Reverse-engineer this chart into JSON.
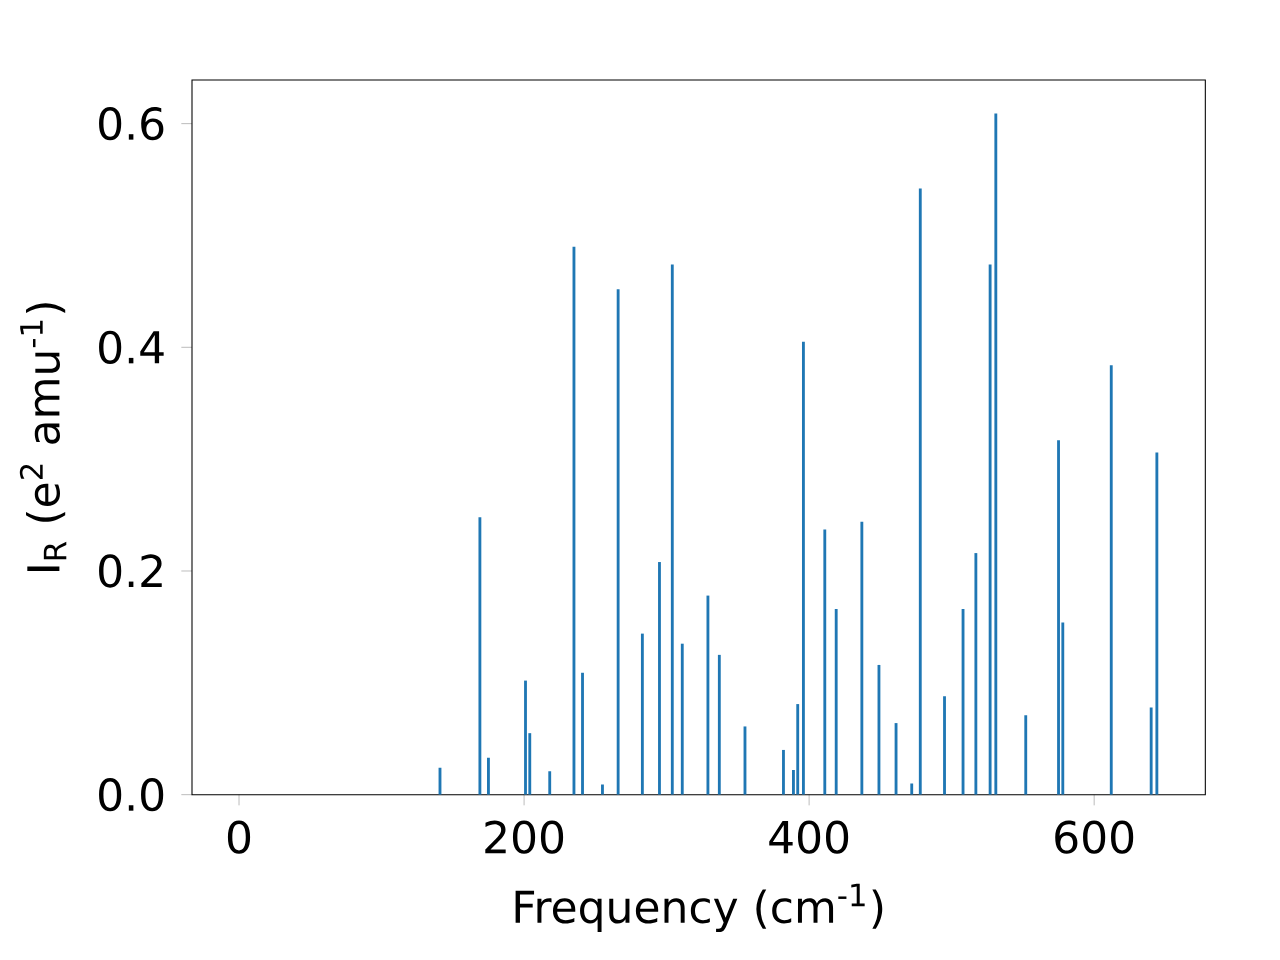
{
  "chart_data": {
    "type": "bar",
    "xlabel": "Frequency (cm$^{-1}$)",
    "ylabel": "I$_{R}$ (e$^{2}$ amu$^{-1}$)",
    "x": [
      141,
      169,
      175,
      201,
      204,
      218,
      235,
      241,
      255,
      266,
      283,
      295,
      304,
      311,
      329,
      337,
      355,
      382,
      389,
      392,
      396,
      411,
      419,
      437,
      449,
      461,
      472,
      478,
      495,
      508,
      517,
      527,
      531,
      552,
      575,
      578,
      612,
      640,
      644
    ],
    "values": [
      0.024,
      0.248,
      0.033,
      0.102,
      0.055,
      0.021,
      0.49,
      0.109,
      0.009,
      0.452,
      0.144,
      0.208,
      0.474,
      0.135,
      0.178,
      0.125,
      0.061,
      0.04,
      0.022,
      0.081,
      0.405,
      0.237,
      0.166,
      0.244,
      0.116,
      0.064,
      0.01,
      0.542,
      0.088,
      0.166,
      0.216,
      0.474,
      0.609,
      0.071,
      0.317,
      0.154,
      0.384,
      0.078,
      0.306
    ],
    "color": "#1f77b4",
    "xlim": [
      -33,
      678
    ],
    "ylim": [
      0,
      0.639
    ],
    "xticks": [
      0,
      200,
      400,
      600
    ],
    "yticks": [
      {
        "value": 0,
        "label": "0.0"
      },
      {
        "value": 0.2,
        "label": "0.2"
      },
      {
        "value": 0.4,
        "label": "0.4"
      },
      {
        "value": 0.6,
        "label": "0.6"
      }
    ],
    "grid": false
  }
}
